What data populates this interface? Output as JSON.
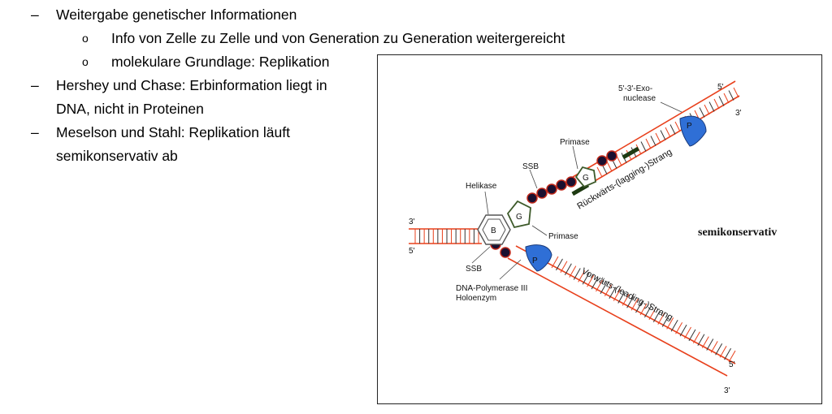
{
  "bullets": [
    {
      "marker": "–",
      "text": "Weitergabe genetischer Informationen"
    },
    {
      "marker": "o",
      "text": "Info von Zelle zu Zelle und von Generation zu Generation weitergereicht"
    },
    {
      "marker": "o",
      "text": "molekulare Grundlage: Replikation"
    },
    {
      "marker": "–",
      "text": "Hershey und Chase: Erbinformation liegt in"
    },
    {
      "text": "DNA, nicht in Proteinen"
    },
    {
      "marker": "–",
      "text": "Meselson und Stahl: Replikation läuft"
    },
    {
      "text": "semikonservativ ab"
    }
  ],
  "figure": {
    "labels": {
      "exo_line1": "5'-3'-Exo-",
      "exo_line2": "nuclease",
      "primase_top": "Primase",
      "ssb_top": "SSB",
      "helikase": "Helikase",
      "primase_mid": "Primase",
      "ssb_bottom": "SSB",
      "pol_line1": "DNA-Polymerase III",
      "pol_line2": "Holoenzym",
      "semikonservativ": "semikonservativ",
      "lagging": "Rückwärts-(lagging-)Strang",
      "leading": "Vorwärts-(leading-)Strang",
      "end_3_left": "3'",
      "end_5_left": "5'",
      "end_5_top": "5'",
      "end_3_top": "3'",
      "end_5_bottom": "5'",
      "end_3_bottom": "3'",
      "helicase_letter": "B",
      "primase_letter": "G",
      "primase2_letter": "G",
      "pol_letter_top": "P",
      "pol_letter_bottom": "P"
    },
    "colors": {
      "strand": "#e8401c",
      "protein_blue": "#2f6fd6",
      "primase_green": "#3d5a2a",
      "rna_primer": "#1e3a12",
      "ssb_fill": "#1a1030",
      "ssb_ring": "#c0281a"
    }
  }
}
